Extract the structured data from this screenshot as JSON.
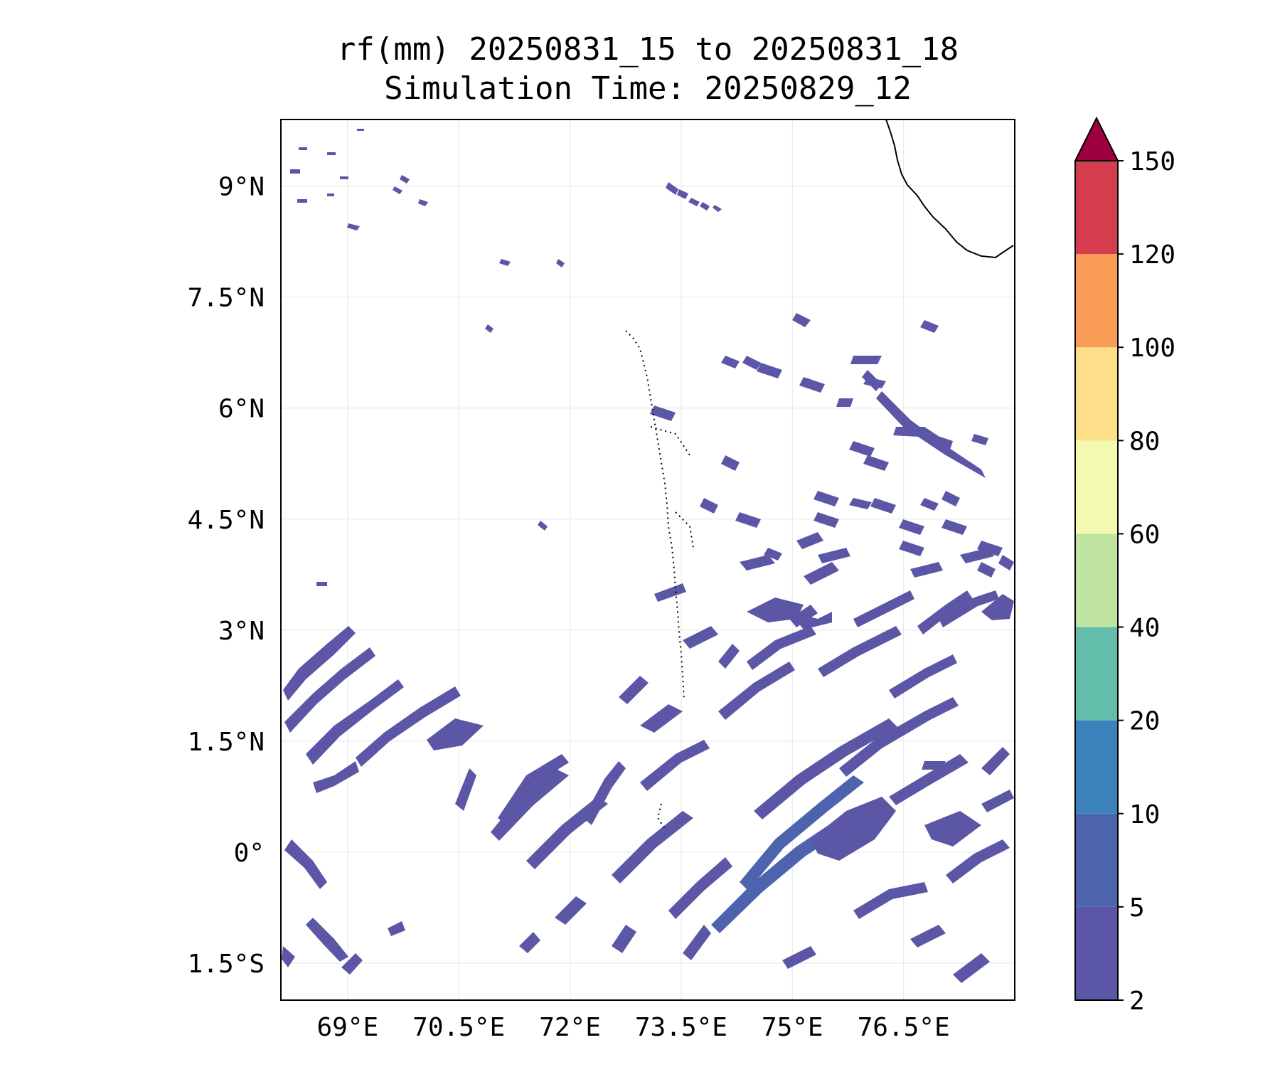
{
  "title": {
    "line1": "rf(mm) 20250831_15 to 20250831_18",
    "line2": "Simulation Time: 20250829_12"
  },
  "map": {
    "lon_range": [
      68.1,
      78.0
    ],
    "lat_range": [
      -2.0,
      9.9
    ],
    "lon_ticks": [
      {
        "value": 69.0,
        "label": "69°E"
      },
      {
        "value": 70.5,
        "label": "70.5°E"
      },
      {
        "value": 72.0,
        "label": "72°E"
      },
      {
        "value": 73.5,
        "label": "73.5°E"
      },
      {
        "value": 75.0,
        "label": "75°E"
      },
      {
        "value": 76.5,
        "label": "76.5°E"
      }
    ],
    "lat_ticks": [
      {
        "value": 9.0,
        "label": "9°N"
      },
      {
        "value": 7.5,
        "label": "7.5°N"
      },
      {
        "value": 6.0,
        "label": "6°N"
      },
      {
        "value": 4.5,
        "label": "4.5°N"
      },
      {
        "value": 3.0,
        "label": "3°N"
      },
      {
        "value": 1.5,
        "label": "1.5°N"
      },
      {
        "value": 0.0,
        "label": "0°"
      },
      {
        "value": -1.5,
        "label": "1.5°S"
      }
    ],
    "grid": true
  },
  "colorbar": {
    "levels": [
      {
        "value": 2,
        "label": "2"
      },
      {
        "value": 5,
        "label": "5"
      },
      {
        "value": 10,
        "label": "10"
      },
      {
        "value": 20,
        "label": "20"
      },
      {
        "value": 40,
        "label": "40"
      },
      {
        "value": 60,
        "label": "60"
      },
      {
        "value": 80,
        "label": "80"
      },
      {
        "value": 100,
        "label": "100"
      },
      {
        "value": 120,
        "label": "120"
      },
      {
        "value": 150,
        "label": "150"
      }
    ],
    "colors": [
      "#5c56a6",
      "#4e63ae",
      "#3b82bd",
      "#62bdaa",
      "#bfe3a0",
      "#f3f9ae",
      "#fddf8a",
      "#f99c56",
      "#d53c4e"
    ],
    "extend_color": "#9e0142",
    "extend": "max"
  }
}
